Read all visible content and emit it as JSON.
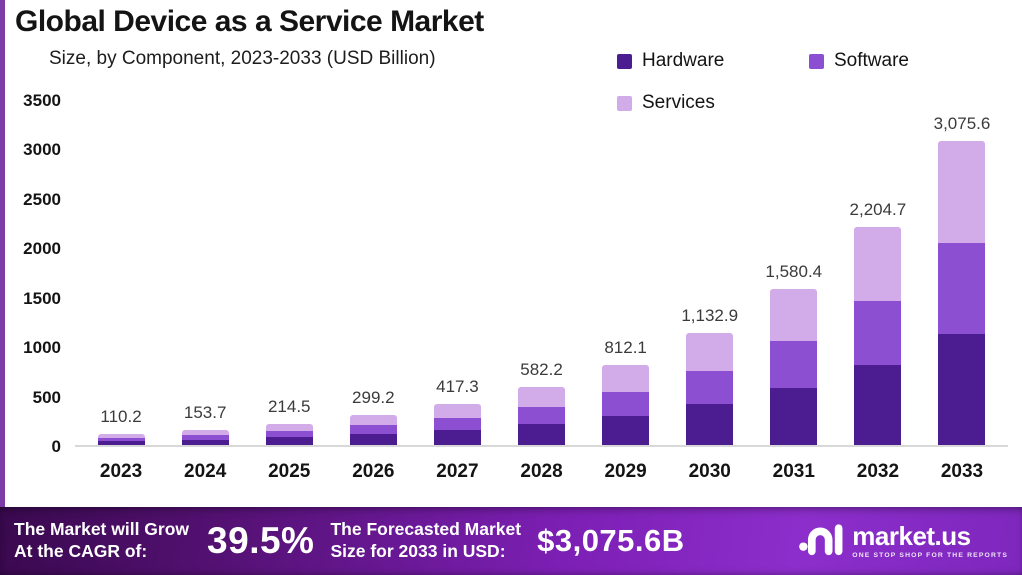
{
  "header": {
    "title": "Global Device as a Service Market",
    "subtitle": "Size, by Component, 2023-2033 (USD Billion)"
  },
  "legend": [
    {
      "label": "Hardware",
      "color": "#4b1d90"
    },
    {
      "label": "Software",
      "color": "#8c4fd2"
    },
    {
      "label": "Services",
      "color": "#d2abe9"
    }
  ],
  "chart_data": {
    "type": "bar",
    "stacked": true,
    "title": "Global Device as a Service Market",
    "subtitle": "Size, by Component, 2023-2033 (USD Billion)",
    "xlabel": "",
    "ylabel": "",
    "ylim": [
      0,
      3500
    ],
    "yticks": [
      0,
      500,
      1000,
      1500,
      2000,
      2500,
      3000,
      3500
    ],
    "grid": false,
    "legend_position": "top-right",
    "categories": [
      "2023",
      "2024",
      "2025",
      "2026",
      "2027",
      "2028",
      "2029",
      "2030",
      "2031",
      "2032",
      "2033"
    ],
    "series": [
      {
        "name": "Hardware",
        "color": "#4b1d90",
        "values": [
          40.2,
          56.1,
          78.3,
          109.2,
          152.3,
          212.5,
          296.4,
          413.5,
          576.8,
          804.7,
          1122.6
        ]
      },
      {
        "name": "Software",
        "color": "#8c4fd2",
        "values": [
          32.8,
          45.8,
          63.9,
          89.2,
          124.4,
          173.5,
          242.0,
          337.6,
          471.0,
          657.0,
          916.5
        ]
      },
      {
        "name": "Services",
        "color": "#d2abe9",
        "values": [
          37.2,
          51.8,
          72.3,
          100.8,
          140.6,
          196.2,
          273.7,
          381.8,
          532.6,
          743.0,
          1036.5
        ]
      }
    ],
    "totals": [
      110.2,
      153.7,
      214.5,
      299.2,
      417.3,
      582.2,
      812.1,
      1132.9,
      1580.4,
      2204.7,
      3075.6
    ],
    "total_labels": [
      "110.2",
      "153.7",
      "214.5",
      "299.2",
      "417.3",
      "582.2",
      "812.1",
      "1,132.9",
      "1,580.4",
      "2,204.7",
      "3,075.6"
    ]
  },
  "banner": {
    "cagr_line1": "The Market will Grow",
    "cagr_line2": "At the CAGR of:",
    "cagr_value": "39.5%",
    "forecast_line1": "The Forecasted Market",
    "forecast_line2": "Size for 2033 in USD:",
    "forecast_value": "$3,075.6B",
    "brand": {
      "name": "market.us",
      "tagline": "ONE STOP SHOP FOR THE REPORTS"
    }
  },
  "colors": {
    "accent_border": "#7c3ba6",
    "banner_gradient_start": "#39094e",
    "banner_gradient_end": "#8c2ecb"
  }
}
